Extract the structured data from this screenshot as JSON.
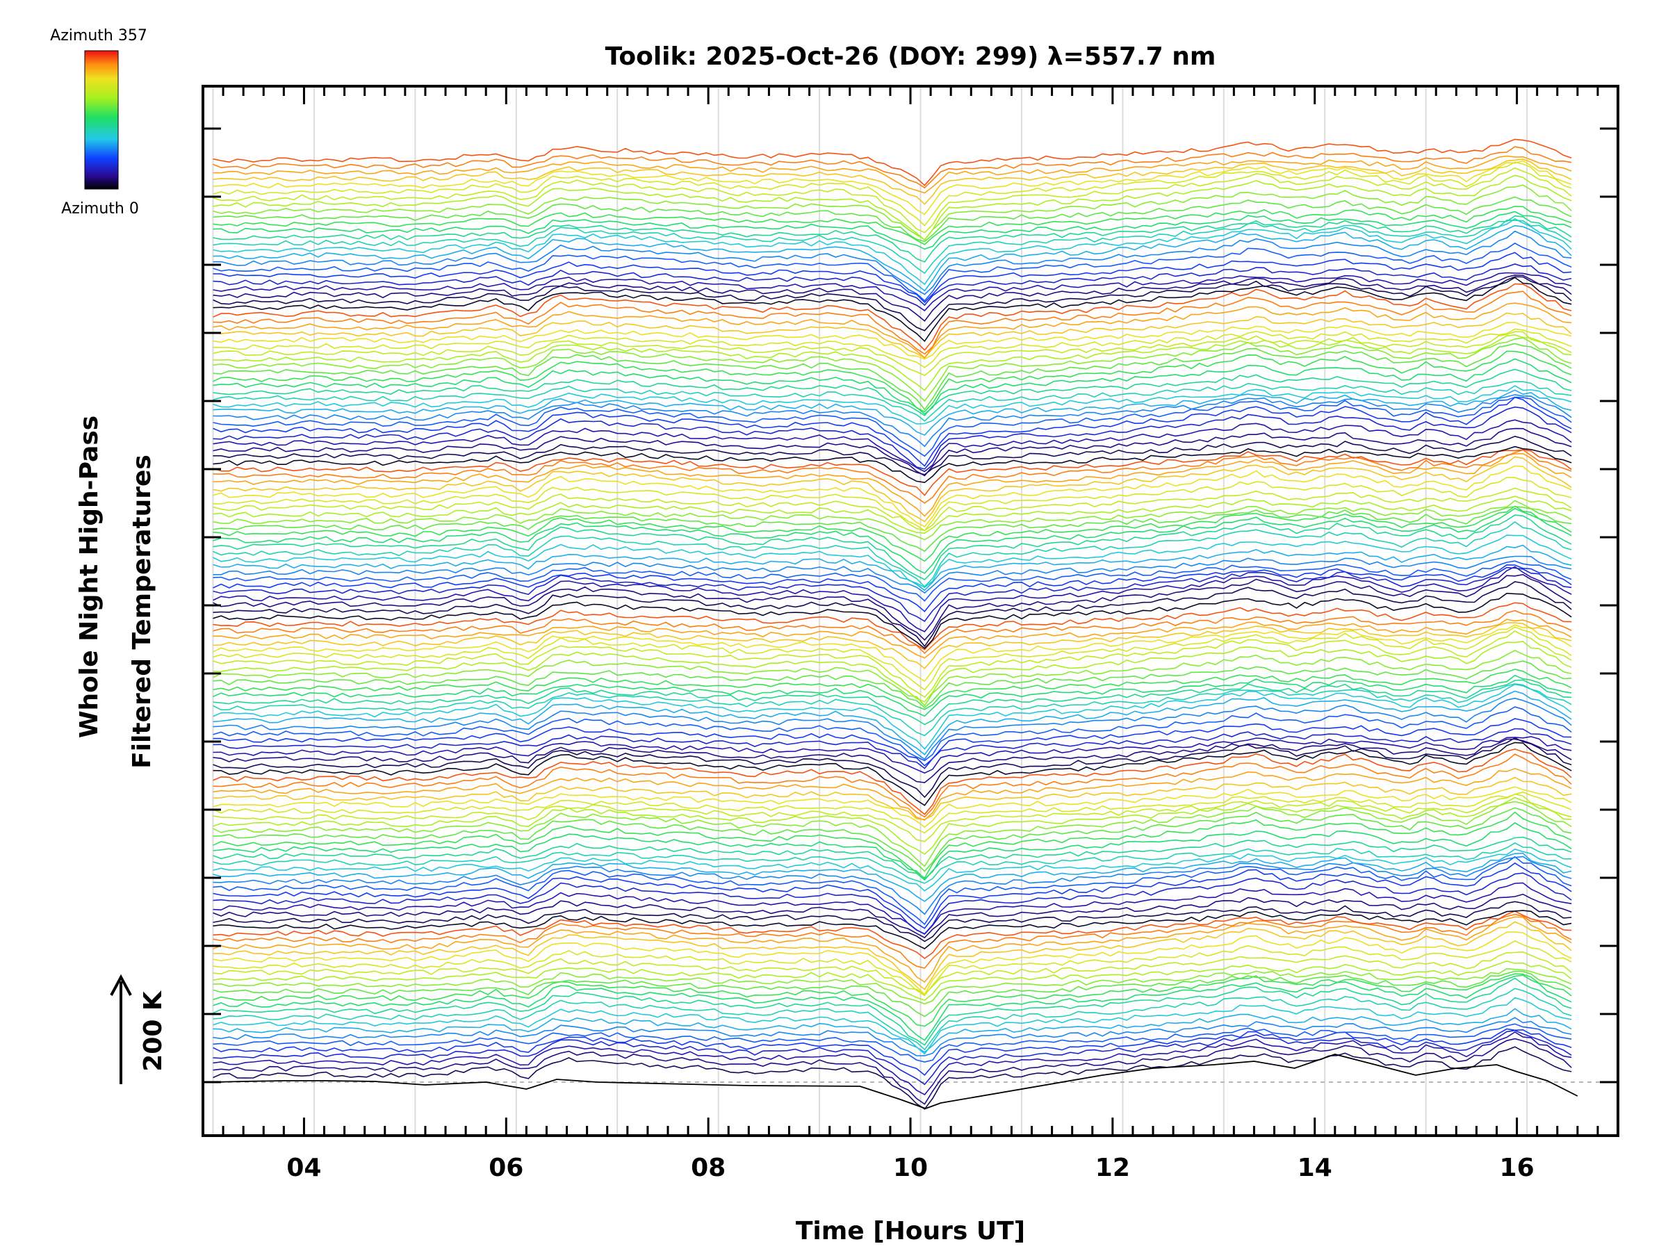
{
  "chart_data": {
    "type": "line",
    "title": "Toolik: 2025-Oct-26 (DOY: 299) λ=557.7 nm",
    "xlabel": "Time [Hours UT]",
    "ylabel_line1": "Whole Night High-Pass",
    "ylabel_line2": "Filtered Temperatures",
    "scale_label": "200 K",
    "xlim": [
      3.0,
      17.0
    ],
    "x_ticks": [
      4,
      6,
      8,
      10,
      12,
      14,
      16
    ],
    "x_tick_labels": [
      "04",
      "06",
      "08",
      "10",
      "12",
      "14",
      "16"
    ],
    "x_minor_step": 0.2,
    "x_gridlines": [
      3.1,
      4.1,
      5.1,
      6.1,
      7.1,
      8.1,
      9.1,
      10.1,
      11.1,
      12.1,
      13.1,
      14.1,
      15.1,
      16.1
    ],
    "colorbar": {
      "top_label": "Azimuth 357",
      "bottom_label": "Azimuth 0",
      "min_azimuth": 0,
      "max_azimuth": 357
    },
    "series_count": 144,
    "azimuth_cycle": 24,
    "key_times": [
      3.1,
      3.6,
      4.1,
      4.7,
      5.2,
      5.9,
      6.2,
      6.5,
      8.0,
      8.4,
      9.2,
      9.6,
      9.9,
      10.15,
      10.35,
      11.8,
      12.4,
      13.0,
      13.4,
      13.8,
      14.3,
      14.9,
      15.1,
      15.5,
      16.0,
      16.6
    ],
    "overall_profile": [
      0,
      0,
      2,
      0,
      0,
      10,
      -3,
      22,
      10,
      5,
      10,
      5,
      -20,
      -45,
      -3,
      6,
      12,
      20,
      30,
      18,
      28,
      10,
      20,
      10,
      40,
      0
    ],
    "baseline_series": {
      "x": [
        3.1,
        3.4,
        3.8,
        4.2,
        4.7,
        5.2,
        5.8,
        6.2,
        6.5,
        6.9,
        8.4,
        9.5,
        9.9,
        10.15,
        10.3,
        11.9,
        12.4,
        13.0,
        13.4,
        13.8,
        14.2,
        14.6,
        15.0,
        15.4,
        15.8,
        16.0,
        16.3,
        16.6
      ],
      "y": [
        0,
        1,
        2,
        2,
        1,
        -4,
        0,
        -10,
        4,
        0,
        -5,
        -6,
        -25,
        -38,
        -30,
        10,
        20,
        25,
        30,
        20,
        40,
        25,
        10,
        20,
        25,
        15,
        2,
        -20
      ]
    }
  }
}
